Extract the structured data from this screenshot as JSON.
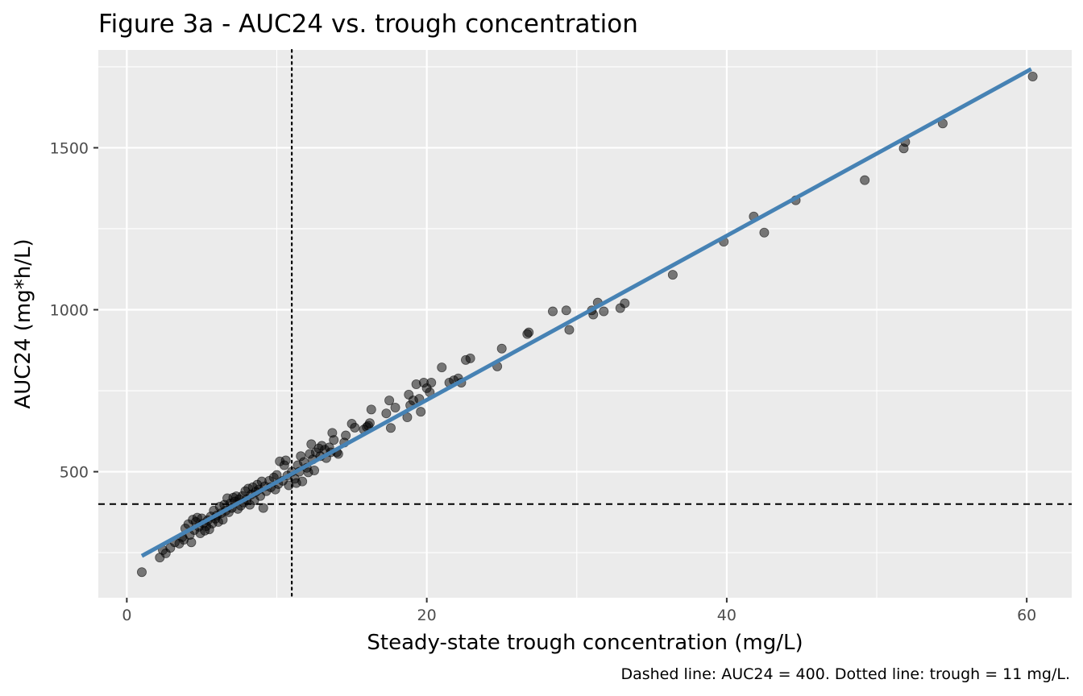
{
  "chart_data": {
    "type": "scatter",
    "title": "Figure 3a - AUC24 vs. trough concentration",
    "xlabel": "Steady-state trough concentration (mg/L)",
    "ylabel": "AUC24 (mg*h/L)",
    "caption": "Dashed line: AUC24 = 400. Dotted line: trough = 11 mg/L.",
    "xlim": [
      -1.9,
      63.0
    ],
    "ylim": [
      111,
      1802
    ],
    "x_ticks": [
      0,
      20,
      40,
      60
    ],
    "x_tick_labels": [
      "0",
      "20",
      "40",
      "60"
    ],
    "y_ticks": [
      500,
      1000,
      1500
    ],
    "y_tick_labels": [
      "500",
      "1000",
      "1500"
    ],
    "grid": true,
    "legend": "none",
    "reference_lines": [
      {
        "orientation": "horizontal",
        "value": 400,
        "style": "dashed",
        "color": "#000000"
      },
      {
        "orientation": "vertical",
        "value": 11,
        "style": "dotted",
        "color": "#000000"
      }
    ],
    "fit_line": {
      "x": [
        1.0,
        60.3
      ],
      "y": [
        240,
        1743
      ],
      "color": "#4682B4"
    },
    "colors": {
      "panel": "#EBEBEB",
      "grid": "#FFFFFF",
      "points": "#000000",
      "fit": "#4682B4"
    },
    "points": [
      [
        1.0,
        190
      ],
      [
        2.2,
        235
      ],
      [
        2.4,
        258
      ],
      [
        2.6,
        248
      ],
      [
        2.9,
        265
      ],
      [
        3.2,
        282
      ],
      [
        3.5,
        278
      ],
      [
        3.7,
        298
      ],
      [
        3.8,
        290
      ],
      [
        3.9,
        325
      ],
      [
        4.1,
        338
      ],
      [
        4.2,
        305
      ],
      [
        4.3,
        282
      ],
      [
        4.4,
        352
      ],
      [
        4.5,
        320
      ],
      [
        4.6,
        345
      ],
      [
        4.7,
        358
      ],
      [
        4.8,
        330
      ],
      [
        4.9,
        310
      ],
      [
        5.0,
        356
      ],
      [
        5.1,
        340
      ],
      [
        5.2,
        318
      ],
      [
        5.3,
        332
      ],
      [
        5.4,
        350
      ],
      [
        5.5,
        322
      ],
      [
        5.6,
        362
      ],
      [
        5.7,
        340
      ],
      [
        5.8,
        380
      ],
      [
        5.9,
        355
      ],
      [
        6.0,
        365
      ],
      [
        6.1,
        345
      ],
      [
        6.2,
        392
      ],
      [
        6.3,
        372
      ],
      [
        6.4,
        352
      ],
      [
        6.5,
        398
      ],
      [
        6.6,
        380
      ],
      [
        6.7,
        418
      ],
      [
        6.8,
        375
      ],
      [
        6.9,
        402
      ],
      [
        7.0,
        388
      ],
      [
        7.1,
        420
      ],
      [
        7.2,
        408
      ],
      [
        7.3,
        424
      ],
      [
        7.4,
        385
      ],
      [
        7.5,
        415
      ],
      [
        7.6,
        395
      ],
      [
        7.7,
        425
      ],
      [
        7.8,
        405
      ],
      [
        7.9,
        440
      ],
      [
        8.0,
        415
      ],
      [
        8.1,
        448
      ],
      [
        8.2,
        398
      ],
      [
        8.3,
        430
      ],
      [
        8.4,
        452
      ],
      [
        8.5,
        412
      ],
      [
        8.6,
        438
      ],
      [
        8.7,
        460
      ],
      [
        8.8,
        445
      ],
      [
        8.9,
        425
      ],
      [
        9.0,
        470
      ],
      [
        9.1,
        388
      ],
      [
        9.2,
        455
      ],
      [
        9.3,
        440
      ],
      [
        9.5,
        472
      ],
      [
        9.6,
        452
      ],
      [
        9.8,
        482
      ],
      [
        9.9,
        445
      ],
      [
        10.0,
        490
      ],
      [
        10.1,
        462
      ],
      [
        10.2,
        532
      ],
      [
        10.4,
        472
      ],
      [
        10.5,
        520
      ],
      [
        10.6,
        535
      ],
      [
        10.7,
        488
      ],
      [
        10.8,
        458
      ],
      [
        11.0,
        500
      ],
      [
        11.2,
        478
      ],
      [
        11.3,
        465
      ],
      [
        11.4,
        520
      ],
      [
        11.5,
        500
      ],
      [
        11.6,
        548
      ],
      [
        11.7,
        470
      ],
      [
        11.8,
        530
      ],
      [
        12.0,
        512
      ],
      [
        12.1,
        498
      ],
      [
        12.2,
        555
      ],
      [
        12.3,
        585
      ],
      [
        12.4,
        538
      ],
      [
        12.5,
        504
      ],
      [
        12.6,
        560
      ],
      [
        12.8,
        572
      ],
      [
        12.9,
        548
      ],
      [
        13.0,
        580
      ],
      [
        13.2,
        568
      ],
      [
        13.3,
        542
      ],
      [
        13.5,
        575
      ],
      [
        13.6,
        560
      ],
      [
        13.7,
        620
      ],
      [
        13.8,
        598
      ],
      [
        14.0,
        560
      ],
      [
        14.1,
        555
      ],
      [
        14.5,
        590
      ],
      [
        14.6,
        612
      ],
      [
        15.0,
        648
      ],
      [
        15.2,
        636
      ],
      [
        15.8,
        630
      ],
      [
        16.0,
        638
      ],
      [
        16.1,
        642
      ],
      [
        16.2,
        650
      ],
      [
        16.3,
        692
      ],
      [
        17.3,
        680
      ],
      [
        17.5,
        720
      ],
      [
        17.6,
        635
      ],
      [
        17.9,
        698
      ],
      [
        18.7,
        668
      ],
      [
        18.8,
        738
      ],
      [
        18.9,
        705
      ],
      [
        19.1,
        720
      ],
      [
        19.3,
        770
      ],
      [
        19.5,
        725
      ],
      [
        19.6,
        685
      ],
      [
        19.8,
        775
      ],
      [
        20.0,
        758
      ],
      [
        20.2,
        745
      ],
      [
        20.3,
        775
      ],
      [
        21.0,
        822
      ],
      [
        21.5,
        775
      ],
      [
        21.8,
        782
      ],
      [
        22.1,
        788
      ],
      [
        22.3,
        775
      ],
      [
        22.6,
        845
      ],
      [
        22.9,
        850
      ],
      [
        24.7,
        825
      ],
      [
        25.0,
        880
      ],
      [
        26.7,
        925
      ],
      [
        26.8,
        930
      ],
      [
        28.4,
        995
      ],
      [
        29.3,
        998
      ],
      [
        29.5,
        938
      ],
      [
        31.0,
        998
      ],
      [
        31.1,
        985
      ],
      [
        31.4,
        1022
      ],
      [
        31.8,
        995
      ],
      [
        32.9,
        1005
      ],
      [
        33.2,
        1020
      ],
      [
        36.4,
        1108
      ],
      [
        39.8,
        1210
      ],
      [
        41.8,
        1288
      ],
      [
        42.5,
        1238
      ],
      [
        44.6,
        1338
      ],
      [
        49.2,
        1400
      ],
      [
        51.8,
        1498
      ],
      [
        51.9,
        1518
      ],
      [
        54.4,
        1575
      ],
      [
        60.4,
        1720
      ]
    ]
  }
}
